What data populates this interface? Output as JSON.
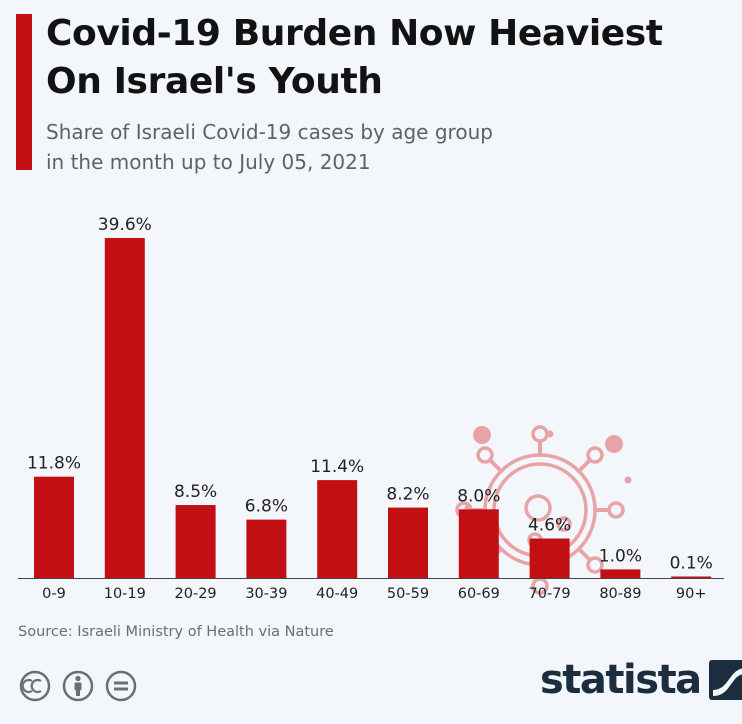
{
  "header": {
    "title_line1": "Covid-19 Burden Now Heaviest",
    "title_line2": "On Israel's Youth",
    "subtitle_line1": "Share of Israeli Covid-19 cases by age group",
    "subtitle_line2": "in the month up to July 05, 2021"
  },
  "chart_data": {
    "type": "bar",
    "categories": [
      "0-9",
      "10-19",
      "20-29",
      "30-39",
      "40-49",
      "50-59",
      "60-69",
      "70-79",
      "80-89",
      "90+"
    ],
    "values": [
      11.8,
      39.6,
      8.5,
      6.8,
      11.4,
      8.2,
      8.0,
      4.6,
      1.0,
      0.1
    ],
    "data_labels": [
      "11.8%",
      "39.6%",
      "8.5%",
      "6.8%",
      "11.4%",
      "8.2%",
      "8.0%",
      "4.6%",
      "1.0%",
      "0.1%"
    ],
    "title": "Covid-19 Burden Now Heaviest On Israel's Youth",
    "subtitle": "Share of Israeli Covid-19 cases by age group in the month up to July 05, 2021",
    "xlabel": "",
    "ylabel": "",
    "ylim": [
      0,
      39.6
    ],
    "grid": false,
    "legend": "none",
    "bar_color": "#c10f14"
  },
  "footer": {
    "source": "Source: Israeli Ministry of Health via Nature",
    "brand": "statista"
  },
  "icons": [
    "creative-commons-icon",
    "attribution-icon",
    "no-derivatives-icon",
    "virus-icon",
    "statista-logo-icon"
  ],
  "colors": {
    "accent": "#c10f14",
    "background": "#f3f6fa",
    "title": "#121212",
    "subtitle": "#5e6166",
    "brand": "#1c2d3f",
    "virus": "#e8a3a6"
  }
}
